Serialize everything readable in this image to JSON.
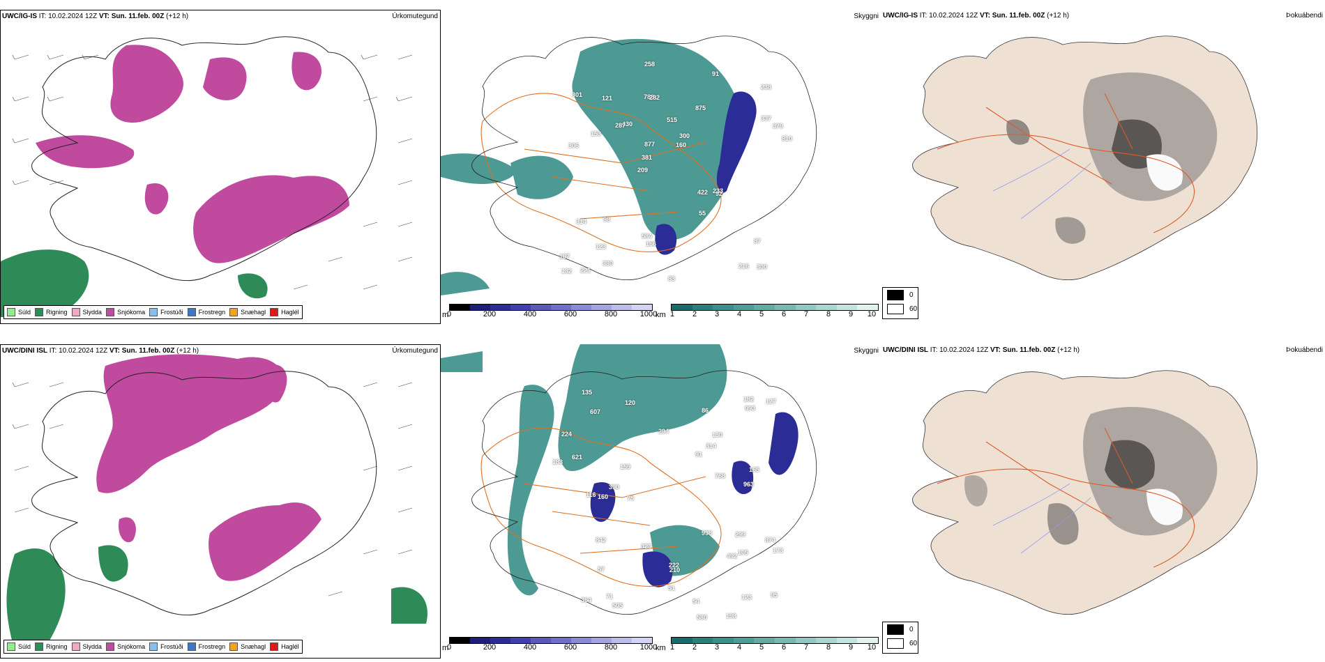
{
  "rows": [
    {
      "model": "UWC/IG-IS",
      "it_label": "IT:",
      "it_value": "10.02.2024 12Z",
      "vt_label": "VT:",
      "vt_value": "Sun. 11.feb. 00Z",
      "lead": "(+12 h)",
      "cloud_labels": [
        "300",
        "306",
        "238",
        "209",
        "875",
        "221",
        "788",
        "515",
        "314",
        "430",
        "187",
        "123",
        "282",
        "300",
        "92",
        "301",
        "258",
        "810",
        "422",
        "337",
        "381",
        "584",
        "877",
        "121",
        "91",
        "98",
        "216",
        "87",
        "233",
        "83",
        "287",
        "153",
        "55",
        "380",
        "379",
        "160",
        "132",
        "166"
      ]
    },
    {
      "model": "UWC/DINI ISL",
      "it_label": "IT:",
      "it_value": "10.02.2024 12Z",
      "vt_label": "VT:",
      "vt_value": "Sun. 11.feb. 00Z",
      "lead": "(+12 h)",
      "cloud_labels": [
        "874",
        "198",
        "210",
        "364",
        "222",
        "159",
        "120",
        "130",
        "580",
        "963",
        "998",
        "993",
        "183",
        "768",
        "505",
        "607",
        "57",
        "71",
        "86",
        "294",
        "621",
        "299",
        "123",
        "116",
        "127",
        "91",
        "492",
        "323",
        "842",
        "390",
        "51",
        "165",
        "95",
        "54",
        "173",
        "160",
        "224",
        "182",
        "75",
        "135",
        "105",
        "314"
      ]
    }
  ],
  "panel_titles": {
    "precip": "Úrkomutegund",
    "cloud": "Skyggni",
    "fog": "Þokuábendi"
  },
  "precip_legend": [
    {
      "label": "Súld",
      "color": "#90ee90"
    },
    {
      "label": "Rigning",
      "color": "#2e8b57"
    },
    {
      "label": "Slydda",
      "color": "#f4a6c8"
    },
    {
      "label": "Snjókoma",
      "color": "#c04a9e"
    },
    {
      "label": "Frostúði",
      "color": "#87bff0"
    },
    {
      "label": "Frostregn",
      "color": "#3a78c9"
    },
    {
      "label": "Snæhagl",
      "color": "#f5a020"
    },
    {
      "label": "Haglél",
      "color": "#e01818"
    }
  ],
  "cloud_base_scale": {
    "unit": "m",
    "ticks": [
      "0",
      "200",
      "400",
      "600",
      "800",
      "1000"
    ],
    "colors": [
      "#000000",
      "#1e1e78",
      "#2c2c96",
      "#4040b0",
      "#5a5ab8",
      "#7070c8",
      "#8a8ad6",
      "#a4a4e0",
      "#bdbdea",
      "#d4d4f2"
    ]
  },
  "visibility_scale": {
    "unit": "km",
    "ticks": [
      "1",
      "2",
      "3",
      "4",
      "5",
      "6",
      "7",
      "8",
      "9",
      "10"
    ],
    "colors": [
      "#1c6b6b",
      "#2a7f7a",
      "#3a8f88",
      "#4e9d96",
      "#64aba4",
      "#7ab9b2",
      "#92c8c1",
      "#abd6d0",
      "#c5e4df",
      "#e2f2ef"
    ]
  },
  "fog_legend": [
    {
      "label": "0",
      "color": "#000000"
    },
    {
      "label": "60",
      "color": "#ffffff"
    }
  ]
}
